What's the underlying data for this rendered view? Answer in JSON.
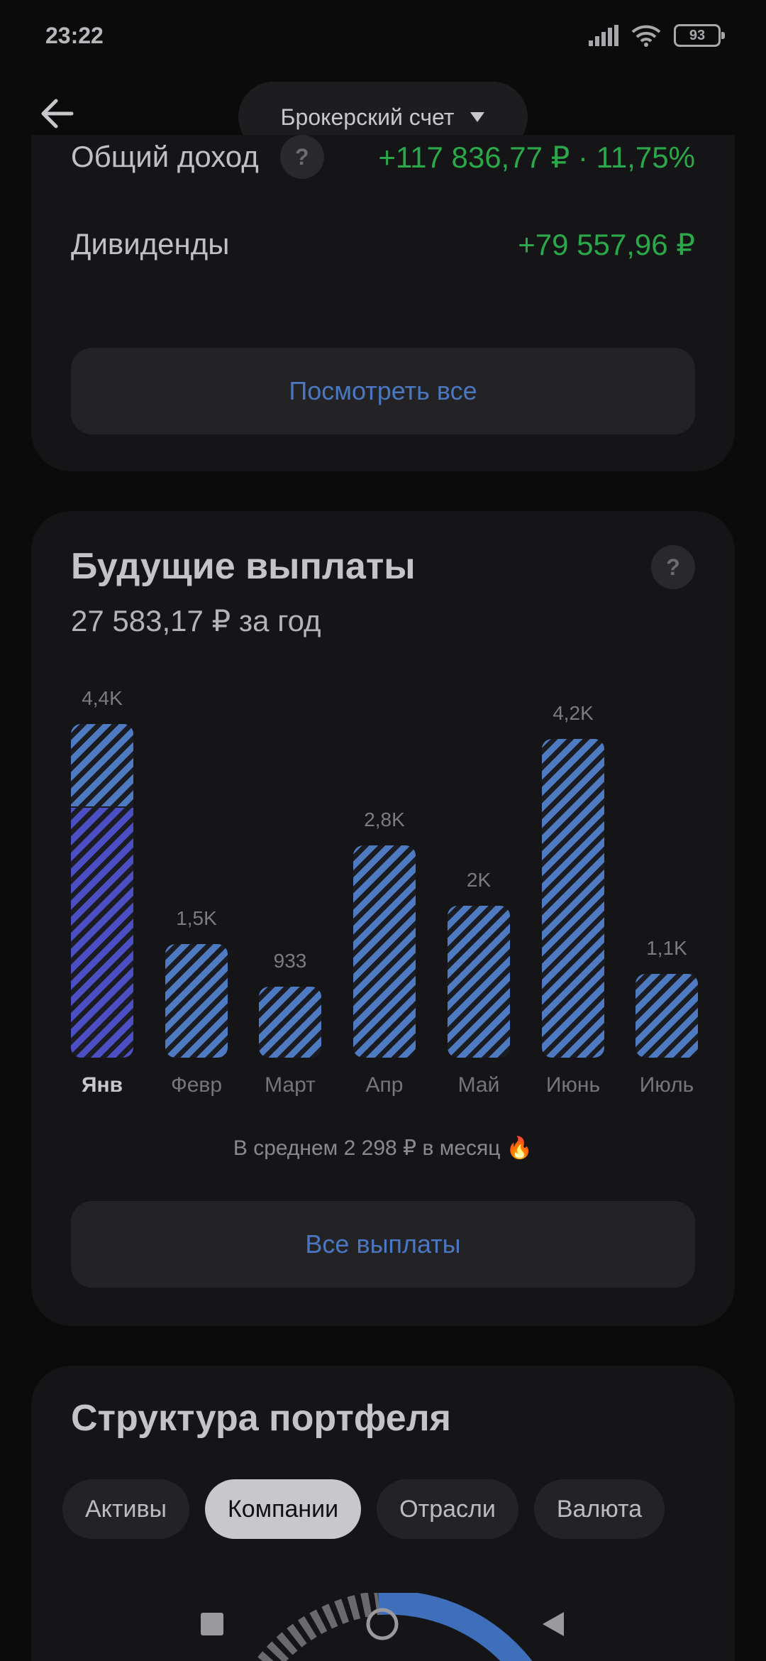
{
  "status": {
    "time": "23:22",
    "battery": "93"
  },
  "header": {
    "account_label": "Брокерский счет"
  },
  "summary": {
    "income_label": "Общий доход",
    "income_value": "+117 836,77 ₽ · 11,75%",
    "dividends_label": "Дивиденды",
    "dividends_value": "+79 557,96 ₽",
    "view_all": "Посмотреть все"
  },
  "payments": {
    "title": "Будущие выплаты",
    "subtitle": "27 583,17 ₽ за год",
    "help": "?",
    "avg_text": "В среднем 2 298 ₽ в месяц 🔥",
    "all_button": "Все выплаты"
  },
  "chart_data": {
    "type": "bar",
    "categories": [
      "Янв",
      "Февр",
      "Март",
      "Апр",
      "Май",
      "Июнь",
      "Июль"
    ],
    "values": [
      4400,
      1500,
      933,
      2800,
      2000,
      4200,
      1100
    ],
    "value_labels": [
      "4,4K",
      "1,5K",
      "933",
      "2,8K",
      "2K",
      "4,2K",
      "1,1K"
    ],
    "ylim": [
      0,
      4400
    ],
    "active_category": "Янв",
    "colors": {
      "bar": "#4d7ac0",
      "active": "#4c4fc4"
    }
  },
  "portfolio": {
    "title": "Структура портфеля",
    "tabs": [
      "Активы",
      "Компании",
      "Отрасли",
      "Валюта"
    ],
    "active_tab": 1
  }
}
